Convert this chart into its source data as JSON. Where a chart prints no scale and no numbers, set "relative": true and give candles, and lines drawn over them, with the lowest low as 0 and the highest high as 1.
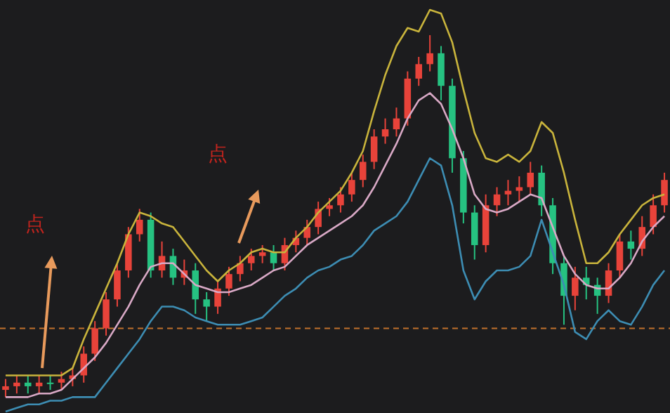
{
  "chart_data": {
    "type": "candlestick",
    "relative": true,
    "annotations": [
      "点",
      "点"
    ],
    "categories": [
      null,
      null,
      null,
      null,
      null,
      null,
      null,
      null,
      null,
      null,
      null,
      null,
      null,
      null,
      null,
      null,
      null,
      null,
      null,
      null,
      null,
      null,
      null,
      null,
      null,
      null,
      null,
      null,
      null,
      null,
      null,
      null,
      null,
      null,
      null,
      null,
      null,
      null,
      null,
      null,
      null,
      null,
      null,
      null,
      null,
      null,
      null,
      null,
      null,
      null,
      null,
      null,
      null,
      null,
      null,
      null,
      null,
      null,
      null,
      null
    ],
    "ohlc": [
      [
        0.02,
        0.05,
        0.0,
        0.03
      ],
      [
        0.03,
        0.06,
        0.01,
        0.04
      ],
      [
        0.04,
        0.06,
        0.01,
        0.03
      ],
      [
        0.03,
        0.06,
        0.01,
        0.04
      ],
      [
        0.04,
        0.06,
        0.02,
        0.04
      ],
      [
        0.04,
        0.07,
        0.02,
        0.05
      ],
      [
        0.05,
        0.08,
        0.03,
        0.06
      ],
      [
        0.06,
        0.14,
        0.04,
        0.12
      ],
      [
        0.12,
        0.21,
        0.1,
        0.19
      ],
      [
        0.19,
        0.29,
        0.17,
        0.27
      ],
      [
        0.27,
        0.37,
        0.25,
        0.35
      ],
      [
        0.35,
        0.47,
        0.33,
        0.45
      ],
      [
        0.45,
        0.52,
        0.43,
        0.49
      ],
      [
        0.49,
        0.51,
        0.33,
        0.35
      ],
      [
        0.35,
        0.43,
        0.33,
        0.39
      ],
      [
        0.39,
        0.41,
        0.31,
        0.33
      ],
      [
        0.33,
        0.38,
        0.31,
        0.35
      ],
      [
        0.35,
        0.37,
        0.23,
        0.27
      ],
      [
        0.27,
        0.29,
        0.21,
        0.25
      ],
      [
        0.25,
        0.32,
        0.23,
        0.3
      ],
      [
        0.3,
        0.36,
        0.28,
        0.34
      ],
      [
        0.34,
        0.39,
        0.32,
        0.37
      ],
      [
        0.37,
        0.41,
        0.35,
        0.39
      ],
      [
        0.39,
        0.42,
        0.37,
        0.4
      ],
      [
        0.4,
        0.42,
        0.35,
        0.37
      ],
      [
        0.37,
        0.44,
        0.35,
        0.42
      ],
      [
        0.42,
        0.46,
        0.4,
        0.44
      ],
      [
        0.44,
        0.49,
        0.42,
        0.47
      ],
      [
        0.47,
        0.54,
        0.45,
        0.52
      ],
      [
        0.52,
        0.55,
        0.5,
        0.53
      ],
      [
        0.53,
        0.58,
        0.51,
        0.56
      ],
      [
        0.56,
        0.62,
        0.54,
        0.6
      ],
      [
        0.6,
        0.67,
        0.58,
        0.65
      ],
      [
        0.65,
        0.74,
        0.63,
        0.72
      ],
      [
        0.72,
        0.77,
        0.7,
        0.74
      ],
      [
        0.74,
        0.8,
        0.72,
        0.77
      ],
      [
        0.77,
        0.9,
        0.75,
        0.88
      ],
      [
        0.88,
        0.94,
        0.86,
        0.92
      ],
      [
        0.92,
        1.0,
        0.9,
        0.95
      ],
      [
        0.95,
        0.97,
        0.82,
        0.86
      ],
      [
        0.86,
        0.88,
        0.62,
        0.66
      ],
      [
        0.66,
        0.68,
        0.48,
        0.51
      ],
      [
        0.51,
        0.53,
        0.38,
        0.42
      ],
      [
        0.42,
        0.56,
        0.4,
        0.53
      ],
      [
        0.53,
        0.58,
        0.5,
        0.56
      ],
      [
        0.56,
        0.6,
        0.53,
        0.57
      ],
      [
        0.57,
        0.61,
        0.54,
        0.58
      ],
      [
        0.58,
        0.65,
        0.56,
        0.62
      ],
      [
        0.62,
        0.64,
        0.5,
        0.53
      ],
      [
        0.53,
        0.55,
        0.34,
        0.37
      ],
      [
        0.37,
        0.39,
        0.2,
        0.28
      ],
      [
        0.28,
        0.36,
        0.24,
        0.33
      ],
      [
        0.33,
        0.36,
        0.27,
        0.31
      ],
      [
        0.31,
        0.33,
        0.23,
        0.28
      ],
      [
        0.28,
        0.37,
        0.26,
        0.35
      ],
      [
        0.35,
        0.45,
        0.33,
        0.43
      ],
      [
        0.43,
        0.46,
        0.38,
        0.41
      ],
      [
        0.41,
        0.5,
        0.39,
        0.47
      ],
      [
        0.47,
        0.56,
        0.45,
        0.53
      ],
      [
        0.53,
        0.62,
        0.51,
        0.6
      ]
    ],
    "colors": [
      "#e8433a",
      "#e8433a",
      "#26c281",
      "#e8433a",
      "#26c281",
      "#e8433a",
      "#e8433a",
      "#e8433a",
      "#e8433a",
      "#e8433a",
      "#e8433a",
      "#e8433a",
      "#e8433a",
      "#26c281",
      "#e8433a",
      "#26c281",
      "#e8433a",
      "#26c281",
      "#26c281",
      "#e8433a",
      "#e8433a",
      "#e8433a",
      "#e8433a",
      "#e8433a",
      "#26c281",
      "#e8433a",
      "#e8433a",
      "#e8433a",
      "#e8433a",
      "#e8433a",
      "#e8433a",
      "#e8433a",
      "#e8433a",
      "#e8433a",
      "#e8433a",
      "#e8433a",
      "#e8433a",
      "#e8433a",
      "#e8433a",
      "#26c281",
      "#26c281",
      "#26c281",
      "#26c281",
      "#e8433a",
      "#e8433a",
      "#e8433a",
      "#e8433a",
      "#e8433a",
      "#26c281",
      "#26c281",
      "#26c281",
      "#e8433a",
      "#26c281",
      "#26c281",
      "#e8433a",
      "#e8433a",
      "#26c281",
      "#e8433a",
      "#e8433a",
      "#e8433a"
    ],
    "series": [
      {
        "type": "line",
        "color": "#c9b43c",
        "values": [
          0.06,
          0.06,
          0.06,
          0.06,
          0.06,
          0.06,
          0.08,
          0.16,
          0.23,
          0.3,
          0.37,
          0.45,
          0.51,
          0.5,
          0.48,
          0.47,
          0.43,
          0.39,
          0.35,
          0.32,
          0.35,
          0.37,
          0.4,
          0.41,
          0.4,
          0.4,
          0.44,
          0.47,
          0.51,
          0.54,
          0.57,
          0.62,
          0.68,
          0.79,
          0.89,
          0.97,
          1.02,
          1.01,
          1.07,
          1.06,
          0.98,
          0.85,
          0.73,
          0.66,
          0.65,
          0.67,
          0.65,
          0.68,
          0.76,
          0.73,
          0.62,
          0.49,
          0.37,
          0.37,
          0.4,
          0.45,
          0.49,
          0.53,
          0.55,
          0.56
        ]
      },
      {
        "type": "line",
        "color": "#d9a9c6",
        "values": [
          0.0,
          0.0,
          0.0,
          0.01,
          0.01,
          0.02,
          0.05,
          0.08,
          0.11,
          0.15,
          0.2,
          0.25,
          0.31,
          0.36,
          0.37,
          0.37,
          0.34,
          0.31,
          0.3,
          0.29,
          0.29,
          0.3,
          0.31,
          0.33,
          0.35,
          0.36,
          0.39,
          0.42,
          0.44,
          0.46,
          0.48,
          0.5,
          0.53,
          0.58,
          0.64,
          0.7,
          0.77,
          0.82,
          0.84,
          0.81,
          0.74,
          0.66,
          0.56,
          0.52,
          0.51,
          0.52,
          0.54,
          0.56,
          0.55,
          0.47,
          0.39,
          0.34,
          0.31,
          0.3,
          0.3,
          0.33,
          0.37,
          0.43,
          0.47,
          0.5
        ]
      },
      {
        "type": "line",
        "color": "#3d8db3",
        "values": [
          -0.04,
          -0.03,
          -0.02,
          -0.02,
          -0.01,
          -0.01,
          0.0,
          0.0,
          0.0,
          0.04,
          0.08,
          0.12,
          0.16,
          0.21,
          0.25,
          0.25,
          0.24,
          0.22,
          0.21,
          0.2,
          0.2,
          0.2,
          0.21,
          0.22,
          0.25,
          0.28,
          0.3,
          0.33,
          0.35,
          0.36,
          0.38,
          0.39,
          0.42,
          0.46,
          0.48,
          0.5,
          0.54,
          0.6,
          0.66,
          0.64,
          0.53,
          0.35,
          0.27,
          0.32,
          0.35,
          0.35,
          0.36,
          0.39,
          0.49,
          0.4,
          0.31,
          0.18,
          0.16,
          0.21,
          0.24,
          0.21,
          0.2,
          0.25,
          0.31,
          0.35
        ]
      }
    ],
    "ref_lines": [
      {
        "axis": "y",
        "value": 0.19,
        "color": "#c0702c",
        "line_style": "dashed"
      }
    ]
  }
}
